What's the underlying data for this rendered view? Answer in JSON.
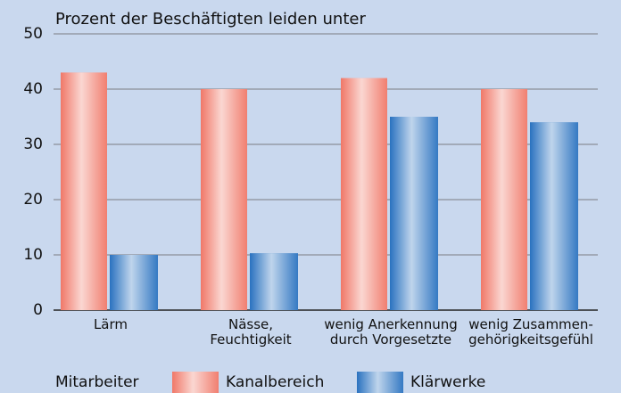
{
  "chart_data": {
    "type": "bar",
    "title": "Prozent der Beschäftigten leiden unter",
    "categories": [
      "Lärm",
      "Nässe,\nFeuchtigkeit",
      "wenig Anerkennung\ndurch Vorgesetzte",
      "wenig Zusammen-\ngehörigkeitsgefühl"
    ],
    "series": [
      {
        "name": "Kanalbereich",
        "color": "#f07868",
        "values": [
          43,
          40,
          42,
          40
        ]
      },
      {
        "name": "Klärwerke",
        "color": "#2a72c0",
        "values": [
          10,
          10.3,
          35,
          34
        ]
      }
    ],
    "legend_title": "Mitarbeiter",
    "ylim": [
      0,
      50
    ],
    "yticks": [
      0,
      10,
      20,
      30,
      40,
      50
    ],
    "grid": true
  }
}
